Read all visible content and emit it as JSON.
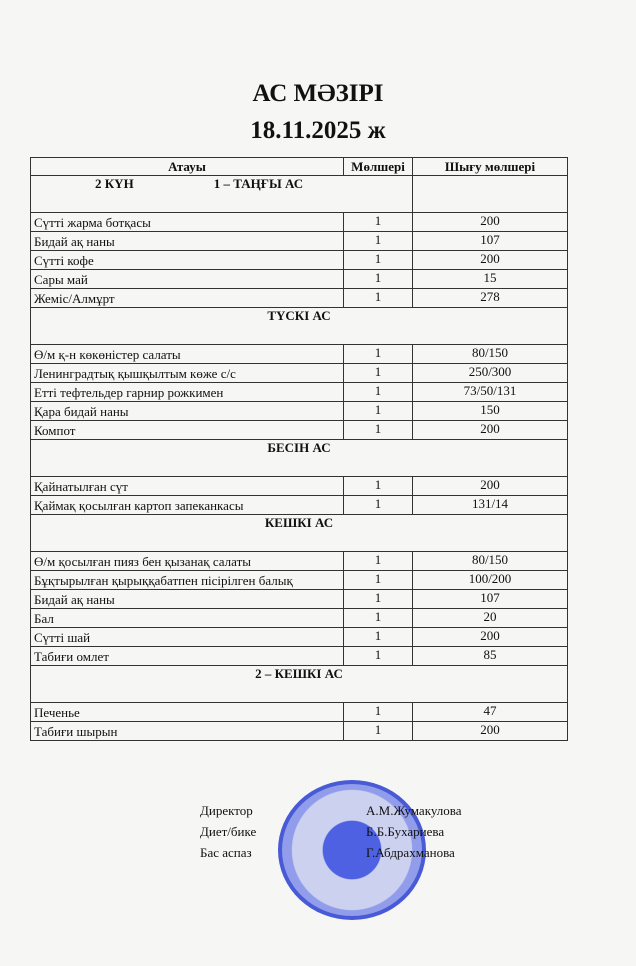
{
  "title": "АС МӘЗІРІ",
  "date": "18.11.2025 ж",
  "columns": [
    "Атауы",
    "Мөлшері",
    "Шығу мөлшері"
  ],
  "day_label": "2   КҮН",
  "sections": [
    {
      "title": "1 – ТАҢҒЫ АС",
      "items": [
        [
          "Сүтті жарма ботқасы",
          "1",
          "200"
        ],
        [
          "Бидай ақ наны",
          "1",
          "107"
        ],
        [
          "Сүтті   кофе",
          "1",
          "200"
        ],
        [
          "Сары май",
          "1",
          "15"
        ],
        [
          "Жеміс/Алмұрт",
          "1",
          "278"
        ]
      ]
    },
    {
      "title": "ТҮСКІ АС",
      "items": [
        [
          "Ө/м  қ-н  көкөністер  салаты",
          "1",
          "80/150"
        ],
        [
          "Ленинградтық қышқылтым көже с/с",
          "1",
          "250/300"
        ],
        [
          "Етті  тефтельдер  гарнир рожкимен",
          "1",
          "73/50/131"
        ],
        [
          "Қара бидай наны",
          "1",
          "150"
        ],
        [
          " Компот",
          "1",
          "200"
        ]
      ]
    },
    {
      "title": "БЕСІН АС",
      "items": [
        [
          "Қайнатылған сүт",
          "1",
          "200"
        ],
        [
          "Қаймақ қосылған картоп запеканкасы",
          "1",
          "131/14"
        ]
      ]
    },
    {
      "title": "КЕШКІ  АС",
      "items": [
        [
          "Ө/м қосылған  пияз бен қызанақ салаты",
          "1",
          "80/150"
        ],
        [
          "Бұқтырылған  қырыққабатпен пісірілген балық",
          "1",
          "100/200"
        ],
        [
          "Бидай ақ наны",
          "1",
          "107"
        ],
        [
          "Бал",
          "1",
          "20"
        ],
        [
          "Сүтті  шай",
          "1",
          "200"
        ],
        [
          "Табиғи  омлет",
          "1",
          "85"
        ]
      ]
    },
    {
      "title": "2 – КЕШКІ АС",
      "items": [
        [
          "Печенье",
          "1",
          "47"
        ],
        [
          "Табиғи  шырын",
          "1",
          "200"
        ]
      ]
    }
  ],
  "signatures": [
    {
      "role": "Директор",
      "name": "А.М.Жумакулова"
    },
    {
      "role": "Диет/бике",
      "name": "Б.Б.Бухариева"
    },
    {
      "role": "Бас  аспаз",
      "name": "Г.Абдрахманова"
    }
  ],
  "colors": {
    "stamp": "#2a3fd0"
  }
}
